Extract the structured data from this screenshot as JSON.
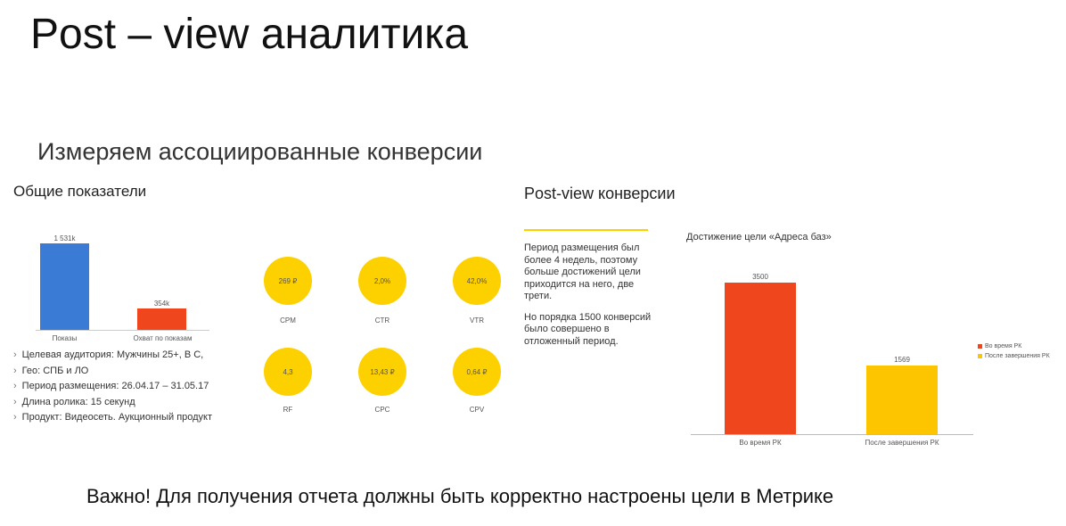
{
  "slide": {
    "title": "Post – view аналитика",
    "subtitle": "Измеряем ассоциированные конверсии",
    "footer_note": "Важно! Для получения отчета должны быть корректно настроены цели в Метрике"
  },
  "left": {
    "heading": "Общие показатели",
    "chart_data": {
      "type": "bar",
      "categories": [
        "Показы",
        "Охват по показам"
      ],
      "values": [
        1531,
        354
      ],
      "value_labels": [
        "1 531k",
        "354k"
      ],
      "colors": [
        "#3a7bd5",
        "#f0461e"
      ],
      "title": "",
      "xlabel": "",
      "ylabel": ""
    },
    "bullets": [
      "Целевая аудитория: Мужчины 25+, B C,",
      "Гео: СПБ и ЛО",
      "Период размещения: 26.04.17 – 31.05.17",
      "Длина ролика: 15 секунд",
      "Продукт: Видеосеть. Аукционный продукт"
    ],
    "bullet_mark": "›"
  },
  "metrics": [
    {
      "value": "269 ₽",
      "label": "CPM"
    },
    {
      "value": "2,0%",
      "label": "CTR"
    },
    {
      "value": "42,0%",
      "label": "VTR"
    },
    {
      "value": "4,3",
      "label": "RF"
    },
    {
      "value": "13,43 ₽",
      "label": "CPC"
    },
    {
      "value": "0,64 ₽",
      "label": "CPV"
    }
  ],
  "right": {
    "heading": "Post-view конверсии",
    "description": [
      "Период размещения был более 4 недель, поэтому больше достижений цели приходится на него, две трети.",
      "Но порядка 1500 конверсий было совершено в отложенный период."
    ],
    "chart_data": {
      "type": "bar",
      "title": "Достижение цели «Адреса баз»",
      "categories": [
        "Во время РК",
        "После завершения РК"
      ],
      "values": [
        3500,
        1569
      ],
      "colors": [
        "#f0461e",
        "#fdc500"
      ],
      "legend": [
        "Во время РК",
        "После завершения РК"
      ],
      "legend_position": "right",
      "xlabel": "",
      "ylabel": ""
    }
  },
  "colors": {
    "accent_yellow": "#fdd000",
    "bar_blue": "#3a7bd5",
    "bar_red": "#f0461e"
  }
}
